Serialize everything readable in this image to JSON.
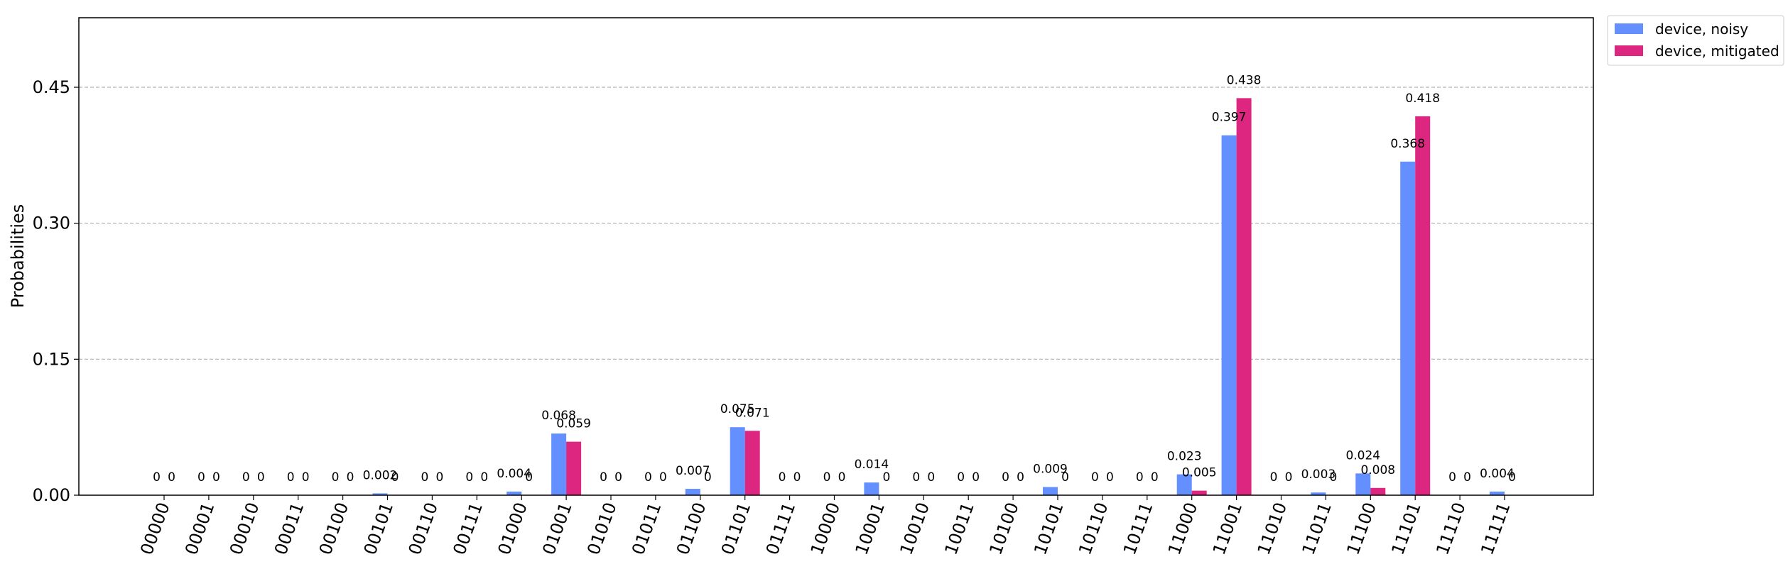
{
  "chart_data": {
    "type": "bar",
    "categories": [
      "00000",
      "00001",
      "00010",
      "00011",
      "00100",
      "00101",
      "00110",
      "00111",
      "01000",
      "01001",
      "01010",
      "01011",
      "01100",
      "01101",
      "01111",
      "10000",
      "10001",
      "10010",
      "10011",
      "10100",
      "10101",
      "10110",
      "10111",
      "11000",
      "11001",
      "11010",
      "11011",
      "11100",
      "11101",
      "11110",
      "11111"
    ],
    "series": [
      {
        "name": "device, noisy",
        "color": "#648fff",
        "values": [
          0,
          0,
          0,
          0,
          0,
          0.002,
          0,
          0,
          0.004,
          0.068,
          0,
          0,
          0.007,
          0.075,
          0,
          0,
          0.014,
          0,
          0,
          0,
          0.009,
          0,
          0,
          0.023,
          0.397,
          0,
          0.003,
          0.024,
          0.368,
          0,
          0.004
        ],
        "labels": [
          "0",
          "0",
          "0",
          "0",
          "0",
          "0.002",
          "0",
          "0",
          "0.004",
          "0.068",
          "0",
          "0",
          "0.007",
          "0.075",
          "0",
          "0",
          "0.014",
          "0",
          "0",
          "0",
          "0.009",
          "0",
          "0",
          "0.023",
          "0.397",
          "0",
          "0.003",
          "0.024",
          "0.368",
          "0",
          "0.004"
        ]
      },
      {
        "name": "device, mitigated",
        "color": "#dc267f",
        "values": [
          0,
          0,
          0,
          0,
          0,
          0,
          0,
          0,
          0,
          0.059,
          0,
          0,
          0,
          0.071,
          0,
          0,
          0,
          0,
          0,
          0,
          0,
          0,
          0,
          0.005,
          0.438,
          0,
          0,
          0.008,
          0.418,
          0,
          0
        ],
        "labels": [
          "0",
          "0",
          "0",
          "0",
          "0",
          "0",
          "0",
          "0",
          "0",
          "0.059",
          "0",
          "0",
          "0",
          "0.071",
          "0",
          "0",
          "0",
          "0",
          "0",
          "0",
          "0",
          "0",
          "0",
          "0.005",
          "0.438",
          "0",
          "0",
          "0.008",
          "0.418",
          "0",
          "0"
        ]
      }
    ],
    "xlabel": "",
    "ylabel": "Probabilities",
    "ylim": [
      0,
      0.5267
    ],
    "yticks": [
      "0.00",
      "0.15",
      "0.30",
      "0.45"
    ],
    "ytick_values": [
      0,
      0.15,
      0.3,
      0.45
    ],
    "grid": "horizontal dashed",
    "legend_placement": "outside top-right"
  }
}
